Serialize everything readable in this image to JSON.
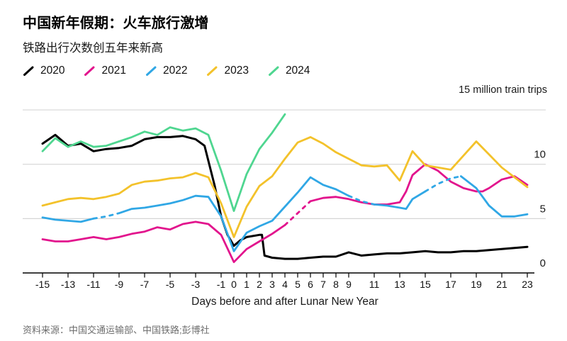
{
  "header": {
    "title": "中国新年假期：火车旅行激增",
    "subtitle": "铁路出行次数创五年来新高"
  },
  "legend": [
    {
      "label": "2020",
      "color": "#000000"
    },
    {
      "label": "2021",
      "color": "#e2148d"
    },
    {
      "label": "2022",
      "color": "#30a7e5"
    },
    {
      "label": "2023",
      "color": "#f3c22b"
    },
    {
      "label": "2024",
      "color": "#4fd690"
    }
  ],
  "source": "资料来源：中国交通运输部、中国铁路;彭博社",
  "chart_data": {
    "type": "line",
    "title": "中国新年假期：火车旅行激增",
    "subtitle": "铁路出行次数创五年来新高",
    "unit_label": "15 million train trips",
    "xlabel": "Days before and after Lunar New Year",
    "ylabel": "million train trips",
    "xlim": [
      -15,
      23
    ],
    "ylim": [
      0,
      15.5
    ],
    "grid": "horizontal",
    "legend_position": "top",
    "x_ticks": [
      -15,
      -13,
      -11,
      -9,
      -7,
      -5,
      -3,
      -1,
      0,
      1,
      2,
      3,
      4,
      5,
      6,
      7,
      8,
      9,
      11,
      13,
      15,
      17,
      19,
      21,
      23
    ],
    "y_gridlines": [
      5,
      10,
      15
    ],
    "y_axis_labels": [
      {
        "value": 10,
        "label": "10"
      },
      {
        "value": 5,
        "label": "5"
      },
      {
        "value": 0,
        "label": "0"
      }
    ],
    "colors": {
      "gridline": "#d6d6d6",
      "axis": "#000000"
    },
    "series": [
      {
        "name": "2020",
        "color": "#000000",
        "dash_ranges": [],
        "x": [
          -15,
          -14,
          -13,
          -12,
          -11,
          -10,
          -9,
          -8,
          -7,
          -6,
          -5,
          -4,
          -3,
          -2.3,
          -1.5,
          -1,
          -0.5,
          0,
          0.5,
          1,
          2,
          2.2,
          2.4,
          3,
          4,
          5,
          6,
          7,
          8,
          9,
          10,
          11,
          12,
          13,
          14,
          15,
          16,
          17,
          18,
          19,
          20,
          21,
          22,
          23
        ],
        "values": [
          11.9,
          12.7,
          11.7,
          11.9,
          11.2,
          11.4,
          11.5,
          11.7,
          12.3,
          12.5,
          12.5,
          12.6,
          12.3,
          11.7,
          8.0,
          5.2,
          3.5,
          2.5,
          3.0,
          3.3,
          3.5,
          3.5,
          1.6,
          1.4,
          1.3,
          1.3,
          1.4,
          1.5,
          1.5,
          1.9,
          1.6,
          1.7,
          1.8,
          1.8,
          1.9,
          2.0,
          1.9,
          1.9,
          2.0,
          2.0,
          2.1,
          2.2,
          2.3,
          2.4
        ]
      },
      {
        "name": "2021",
        "color": "#e2148d",
        "dash_ranges": [
          [
            4.1,
            5.9
          ]
        ],
        "x": [
          -15,
          -14,
          -13,
          -12,
          -11,
          -10,
          -9,
          -8,
          -7,
          -6,
          -5,
          -4,
          -3,
          -2,
          -1,
          0,
          1,
          2,
          3,
          4,
          5,
          6,
          7,
          8,
          9,
          10,
          11,
          12,
          13,
          13.5,
          14,
          15,
          16,
          17,
          18,
          19,
          19.5,
          20,
          21,
          22,
          23
        ],
        "values": [
          3.1,
          2.9,
          2.9,
          3.1,
          3.3,
          3.1,
          3.3,
          3.6,
          3.8,
          4.2,
          4.0,
          4.5,
          4.7,
          4.5,
          3.5,
          1.0,
          2.2,
          2.9,
          3.6,
          4.4,
          5.5,
          6.6,
          6.9,
          7.0,
          6.8,
          6.5,
          6.3,
          6.3,
          6.5,
          7.5,
          9.0,
          10.0,
          9.4,
          8.4,
          7.8,
          7.5,
          7.5,
          7.8,
          8.6,
          8.9,
          8.1
        ]
      },
      {
        "name": "2022",
        "color": "#30a7e5",
        "dash_ranges": [
          [
            -11,
            -9
          ],
          [
            8.5,
            11.2
          ],
          [
            14.5,
            17.5
          ]
        ],
        "x": [
          -15,
          -14,
          -13,
          -12,
          -11,
          -10,
          -9,
          -8,
          -7,
          -6,
          -5,
          -4,
          -3,
          -2,
          -1,
          0,
          1,
          2,
          3,
          4,
          5,
          6,
          7,
          8,
          9,
          10,
          11,
          12,
          13,
          13.5,
          14,
          15,
          16,
          17,
          17.8,
          19,
          20,
          21,
          22,
          23
        ],
        "values": [
          5.1,
          4.9,
          4.8,
          4.7,
          5.0,
          5.2,
          5.5,
          5.9,
          6.0,
          6.2,
          6.4,
          6.7,
          7.1,
          7.0,
          5.2,
          2.0,
          3.7,
          4.3,
          4.8,
          6.1,
          7.4,
          8.8,
          8.1,
          7.7,
          7.1,
          6.6,
          6.3,
          6.2,
          6.0,
          5.9,
          6.8,
          7.5,
          8.2,
          8.7,
          8.9,
          7.8,
          6.2,
          5.2,
          5.2,
          5.4
        ]
      },
      {
        "name": "2023",
        "color": "#f3c22b",
        "dash_ranges": [],
        "x": [
          -15,
          -14,
          -13,
          -12,
          -11,
          -10,
          -9,
          -8,
          -7,
          -6,
          -5,
          -4,
          -3,
          -2,
          -1,
          0,
          1,
          2,
          3,
          4,
          5,
          6,
          7,
          8,
          9,
          10,
          11,
          12,
          13,
          14,
          15,
          16,
          17,
          18,
          19,
          20,
          21,
          22,
          23
        ],
        "values": [
          6.2,
          6.5,
          6.8,
          6.9,
          6.8,
          7.0,
          7.3,
          8.1,
          8.4,
          8.5,
          8.7,
          8.8,
          9.2,
          8.8,
          6.4,
          3.3,
          6.1,
          8.0,
          8.9,
          10.5,
          12.0,
          12.5,
          11.9,
          11.1,
          10.5,
          9.9,
          9.8,
          9.9,
          8.5,
          11.2,
          9.9,
          9.7,
          9.5,
          10.8,
          12.1,
          10.9,
          9.7,
          8.8,
          7.9
        ]
      },
      {
        "name": "2024",
        "color": "#4fd690",
        "dash_ranges": [],
        "x": [
          -15,
          -14,
          -13,
          -12,
          -11,
          -10,
          -9,
          -8,
          -7,
          -6,
          -5,
          -4,
          -3,
          -2,
          -1,
          0,
          1,
          2,
          3,
          4
        ],
        "values": [
          11.2,
          12.4,
          11.6,
          12.1,
          11.6,
          11.7,
          12.1,
          12.5,
          13.0,
          12.7,
          13.4,
          13.1,
          13.3,
          12.7,
          9.4,
          5.7,
          9.1,
          11.4,
          12.9,
          14.6
        ]
      }
    ]
  }
}
